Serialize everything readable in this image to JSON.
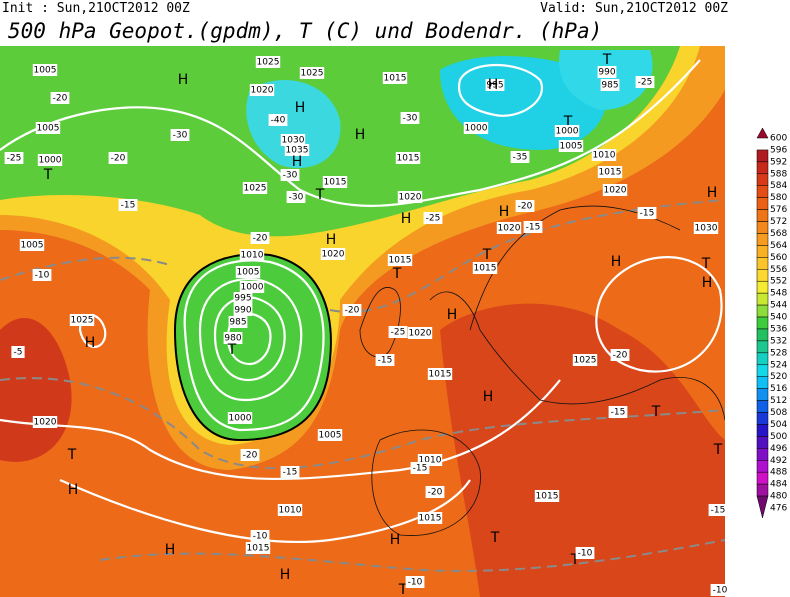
{
  "header": {
    "init": "Init : Sun,21OCT2012 00Z",
    "valid": "Valid: Sun,21OCT2012 00Z",
    "title": "500 hPa Geopot.(gpdm), T (C) und Bodendr. (hPa)"
  },
  "colorbar": {
    "labels": [
      "600",
      "596",
      "592",
      "588",
      "584",
      "580",
      "576",
      "572",
      "568",
      "564",
      "560",
      "556",
      "552",
      "548",
      "544",
      "540",
      "536",
      "532",
      "528",
      "524",
      "520",
      "516",
      "512",
      "508",
      "504",
      "500",
      "496",
      "492",
      "488",
      "484",
      "480",
      "476"
    ],
    "colors": [
      "#9b0a2a",
      "#b01a22",
      "#c8281c",
      "#d83a17",
      "#e44d14",
      "#ec6014",
      "#f07418",
      "#f4881c",
      "#f79c20",
      "#f9b024",
      "#fbc42a",
      "#fdd830",
      "#f4ec30",
      "#c8e832",
      "#8cdc3a",
      "#3ccc3c",
      "#22c060",
      "#1cc890",
      "#14d0c0",
      "#12d8e8",
      "#10c0f4",
      "#1090f0",
      "#1060e8",
      "#1838d8",
      "#2814c8",
      "#5010c0",
      "#8010c8",
      "#b010d0",
      "#d010c8",
      "#a010a0",
      "#700870"
    ]
  },
  "map_labels": [
    "1005",
    "-20",
    "1005",
    "-25",
    "1000",
    "T",
    "-20",
    "-30",
    "H",
    "1025",
    "1025",
    "1020",
    "H",
    "-40",
    "1030",
    "1035",
    "H",
    "-30",
    "1015",
    "T",
    "1025",
    "-30",
    "H",
    "1015",
    "-30",
    "1015",
    "1020",
    "H",
    "-25",
    "H",
    "1020",
    "1010",
    "1005",
    "-20",
    "1000",
    "995",
    "990",
    "985",
    "980",
    "T",
    "1000",
    "1005",
    "-20",
    "-20",
    "-25",
    "1020",
    "-15",
    "1015",
    "H",
    "1015",
    "T",
    "-5",
    "1025",
    "H",
    "1020",
    "T",
    "H",
    "-15",
    "1005",
    "-10",
    "1000",
    "995",
    "T",
    "1000",
    "H",
    "-35",
    "1005",
    "1010",
    "1015",
    "1020",
    "990",
    "985",
    "T",
    "-25",
    "H",
    "-20",
    "1020",
    "-15",
    "T",
    "1015",
    "H",
    "1030",
    "H",
    "-15",
    "T",
    "H",
    "1025",
    "-20",
    "H",
    "-15",
    "T",
    "T",
    "1010",
    "-15",
    "-20",
    "1015",
    "1015",
    "-15",
    "1010",
    "1015",
    "-10",
    "H",
    "H",
    "H",
    "T",
    "T",
    "-10",
    "T",
    "-10",
    "-15",
    "-10"
  ]
}
